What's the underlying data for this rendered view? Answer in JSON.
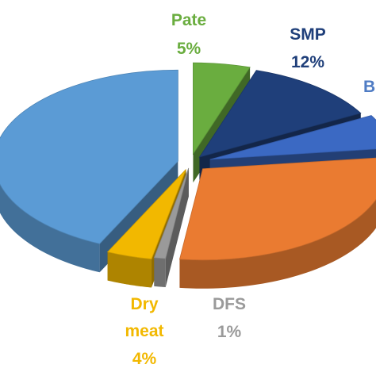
{
  "chart_data": {
    "type": "pie",
    "three_d": true,
    "exploded": true,
    "slices": [
      {
        "label": "Pate",
        "value": 5,
        "value_label": "5%",
        "color": "#6aad3f",
        "label_color": "#6aad3f"
      },
      {
        "label": "SMP",
        "value": 12,
        "value_label": "12%",
        "color": "#1f3f7a",
        "label_color": "#1f3f7a"
      },
      {
        "label": "B",
        "value": 6,
        "value_label": "",
        "color": "#3b69c3",
        "label_color": "#4f7cc4"
      },
      {
        "label": "",
        "value": 29,
        "value_label": "",
        "color": "#ea7b31",
        "label_color": "#ea7b31"
      },
      {
        "label": "DFS",
        "value": 1,
        "value_label": "1%",
        "color": "#9a9a9a",
        "label_color": "#9a9a9a"
      },
      {
        "label": "Dry meat",
        "value": 4,
        "value_label": "4%",
        "color": "#f2b800",
        "label_color": "#f2b800"
      },
      {
        "label": "",
        "value": 43,
        "value_label": "",
        "color": "#5b9bd5",
        "label_color": "#5b9bd5"
      }
    ]
  }
}
